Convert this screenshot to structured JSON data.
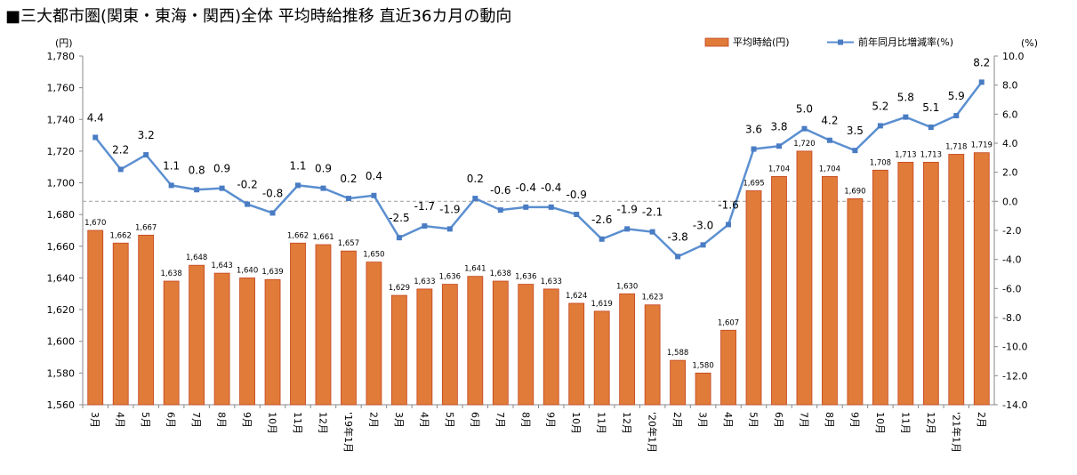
{
  "title": "■三大都市圏(関東・東海・関西)全体 平均時給推移 直近36カ月の動向",
  "chart_data": {
    "type": "bar+line",
    "categories": [
      "3月",
      "4月",
      "5月",
      "6月",
      "7月",
      "8月",
      "9月",
      "10月",
      "11月",
      "12月",
      "'19年1月",
      "2月",
      "3月",
      "4月",
      "5月",
      "6月",
      "7月",
      "8月",
      "9月",
      "10月",
      "11月",
      "12月",
      "'20年1月",
      "2月",
      "3月",
      "4月",
      "5月",
      "6月",
      "7月",
      "8月",
      "9月",
      "10月",
      "11月",
      "12月",
      "'21年1月",
      "2月"
    ],
    "series": [
      {
        "name": "平均時給(円)",
        "type": "bar",
        "axis": "left",
        "color": "#e07b39",
        "values": [
          1670,
          1662,
          1667,
          1638,
          1648,
          1643,
          1640,
          1639,
          1662,
          1661,
          1657,
          1650,
          1629,
          1633,
          1636,
          1641,
          1638,
          1636,
          1633,
          1624,
          1619,
          1630,
          1623,
          1588,
          1580,
          1607,
          1695,
          1704,
          1720,
          1704,
          1690,
          1708,
          1713,
          1713,
          1718,
          1719
        ]
      },
      {
        "name": "前年同月比増減率(%)",
        "type": "line",
        "axis": "right",
        "color": "#5b8fd0",
        "values": [
          4.4,
          2.2,
          3.2,
          1.1,
          0.8,
          0.9,
          -0.2,
          -0.8,
          1.1,
          0.9,
          0.2,
          0.4,
          -2.5,
          -1.7,
          -1.9,
          0.2,
          -0.6,
          -0.4,
          -0.4,
          -0.9,
          -2.6,
          -1.9,
          -2.1,
          -3.8,
          -3.0,
          -1.6,
          3.6,
          3.8,
          5.0,
          4.2,
          3.5,
          5.2,
          5.8,
          5.1,
          5.9,
          8.2
        ]
      }
    ],
    "y_left": {
      "unit": "(円)",
      "range": [
        1560,
        1780
      ],
      "ticks": [
        "1,560",
        "1,580",
        "1,600",
        "1,620",
        "1,640",
        "1,660",
        "1,680",
        "1,700",
        "1,720",
        "1,740",
        "1,760",
        "1,780"
      ]
    },
    "y_right": {
      "unit": "(%)",
      "range": [
        -14,
        10
      ],
      "ticks": [
        "-14.0",
        "-12.0",
        "-10.0",
        "-8.0",
        "-6.0",
        "-4.0",
        "-2.0",
        "0.0",
        "2.0",
        "4.0",
        "6.0",
        "8.0",
        "10.0"
      ]
    },
    "zero_line": true,
    "grid": false,
    "legend_position": "top-right"
  }
}
